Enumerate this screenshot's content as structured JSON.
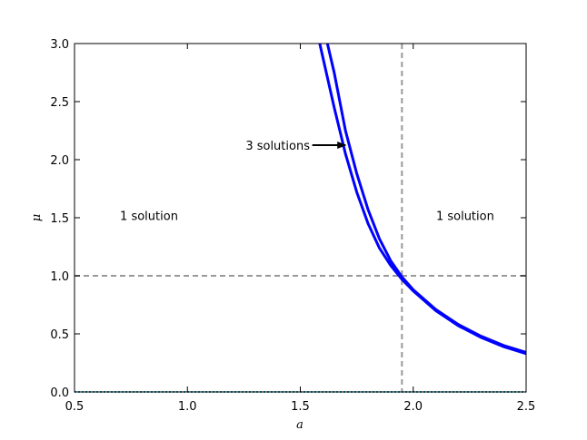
{
  "chart_data": {
    "type": "line",
    "x_label": "a",
    "y_label": "μ",
    "xlim": [
      0.5,
      2.5
    ],
    "ylim": [
      0,
      3
    ],
    "xticks": [
      0.5,
      {
        "value": 1,
        "label": "1.0"
      },
      1.5,
      {
        "value": 2,
        "label": "2.0"
      },
      2.5
    ],
    "yticks": [
      {
        "value": 0,
        "label": "0.0"
      },
      0.5,
      {
        "value": 1,
        "label": "1.0"
      },
      1.5,
      {
        "value": 2,
        "label": "2.0"
      },
      2.5,
      {
        "value": 3,
        "label": "3.0"
      }
    ],
    "grid": false,
    "series": [
      {
        "color": "#0000ff",
        "x": [
          1.586,
          1.65,
          1.7,
          1.75,
          1.8,
          1.85,
          1.9,
          1.95,
          2.0,
          2.1,
          2.2,
          2.3,
          2.4,
          2.5
        ],
        "values": [
          3.0,
          2.45,
          2.05,
          1.72,
          1.45,
          1.24,
          1.09,
          0.97,
          0.87,
          0.7,
          0.57,
          0.47,
          0.39,
          0.33
        ]
      },
      {
        "color": "#0000ff",
        "x": [
          1.62,
          1.65,
          1.7,
          1.75,
          1.8,
          1.85,
          1.9,
          1.95,
          2.0,
          2.1,
          2.2,
          2.3,
          2.4,
          2.5
        ],
        "values": [
          3.0,
          2.75,
          2.25,
          1.88,
          1.57,
          1.32,
          1.13,
          0.99,
          0.88,
          0.71,
          0.58,
          0.48,
          0.4,
          0.34
        ]
      }
    ],
    "reference_lines": [
      {
        "axis": "x",
        "value": 1.95,
        "color": "#999999",
        "style": "dashed"
      },
      {
        "axis": "y",
        "value": 1.0,
        "color": "#999999",
        "style": "dashed"
      },
      {
        "axis": "y",
        "value": 0.0,
        "color": "#17a2b8",
        "style": "dotted"
      }
    ],
    "annotations": [
      {
        "text": "3 solutions",
        "x": 1.4,
        "y": 2.125,
        "arrow_x": 1.7,
        "arrow_y": 2.125
      },
      {
        "text": "1 solution",
        "x": 0.83,
        "y": 1.52
      },
      {
        "text": "1 solution",
        "x": 2.23,
        "y": 1.52
      }
    ]
  }
}
